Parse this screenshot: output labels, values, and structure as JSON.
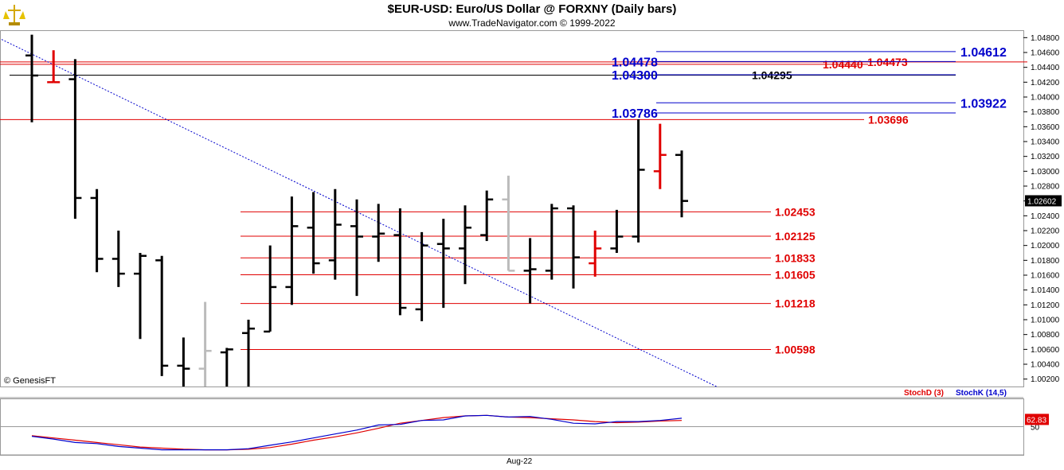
{
  "header": {
    "title": "$EUR-USD:  Euro/US Dollar @ FORXNY  (Daily bars)",
    "subtitle": "www.TradeNavigator.com © 1999-2022"
  },
  "footer": {
    "copyright": "© GenesisFT",
    "date_label": "Aug-22"
  },
  "chart_data": [
    {
      "type": "ohlc",
      "title": "$EUR-USD:  Euro/US Dollar @ FORXNY  (Daily bars)",
      "ylim": [
        1.001,
        1.049
      ],
      "y_ticks": [
        "1.04800",
        "1.04600",
        "1.04400",
        "1.04200",
        "1.04000",
        "1.03800",
        "1.03600",
        "1.03400",
        "1.03200",
        "1.03000",
        "1.02800",
        "1.02600",
        "1.02400",
        "1.02200",
        "1.02000",
        "1.01800",
        "1.01600",
        "1.01400",
        "1.01200",
        "1.01000",
        "1.00800",
        "1.00600",
        "1.00400",
        "1.00200"
      ],
      "last_price": "1.02602",
      "bars": [
        {
          "o": 1.0456,
          "h": 1.0484,
          "l": 1.0366,
          "c": 1.0429,
          "color": "#000000"
        },
        {
          "o": 1.042,
          "h": 1.0463,
          "l": 1.042,
          "c": 1.042,
          "color": "#e00000"
        },
        {
          "o": 1.0424,
          "h": 1.0451,
          "l": 1.0236,
          "c": 1.0264,
          "color": "#000000"
        },
        {
          "o": 1.0264,
          "h": 1.0276,
          "l": 1.0164,
          "c": 1.0182,
          "color": "#000000"
        },
        {
          "o": 1.0182,
          "h": 1.022,
          "l": 1.0144,
          "c": 1.0162,
          "color": "#000000"
        },
        {
          "o": 1.0162,
          "h": 1.019,
          "l": 1.0074,
          "c": 1.0186,
          "color": "#000000"
        },
        {
          "o": 1.018,
          "h": 1.0186,
          "l": 1.0024,
          "c": 1.0038,
          "color": "#000000"
        },
        {
          "o": 1.0038,
          "h": 1.0076,
          "l": 1.001,
          "c": 1.0034,
          "color": "#000000"
        },
        {
          "o": 1.0034,
          "h": 1.0124,
          "l": 1.001,
          "c": 1.0058,
          "color": "#bbbbbb"
        },
        {
          "o": 1.0056,
          "h": 1.0062,
          "l": 1.001,
          "c": 1.006,
          "color": "#000000"
        },
        {
          "o": 1.0082,
          "h": 1.01,
          "l": 1.001,
          "c": 1.0088,
          "color": "#000000"
        },
        {
          "o": 1.0084,
          "h": 1.02,
          "l": 1.0084,
          "c": 1.0144,
          "color": "#000000"
        },
        {
          "o": 1.0144,
          "h": 1.0266,
          "l": 1.012,
          "c": 1.0226,
          "color": "#000000"
        },
        {
          "o": 1.0224,
          "h": 1.0272,
          "l": 1.0162,
          "c": 1.0176,
          "color": "#000000"
        },
        {
          "o": 1.018,
          "h": 1.0276,
          "l": 1.0154,
          "c": 1.0228,
          "color": "#000000"
        },
        {
          "o": 1.0226,
          "h": 1.0262,
          "l": 1.0132,
          "c": 1.0212,
          "color": "#000000"
        },
        {
          "o": 1.0212,
          "h": 1.0256,
          "l": 1.0178,
          "c": 1.0216,
          "color": "#000000"
        },
        {
          "o": 1.0214,
          "h": 1.025,
          "l": 1.0106,
          "c": 1.0116,
          "color": "#000000"
        },
        {
          "o": 1.0114,
          "h": 1.0218,
          "l": 1.0098,
          "c": 1.02,
          "color": "#000000"
        },
        {
          "o": 1.0202,
          "h": 1.0236,
          "l": 1.0116,
          "c": 1.0196,
          "color": "#000000"
        },
        {
          "o": 1.0196,
          "h": 1.0254,
          "l": 1.0148,
          "c": 1.0224,
          "color": "#000000"
        },
        {
          "o": 1.0214,
          "h": 1.0274,
          "l": 1.0206,
          "c": 1.0262,
          "color": "#000000"
        },
        {
          "o": 1.0262,
          "h": 1.0294,
          "l": 1.0166,
          "c": 1.0166,
          "color": "#bbbbbb"
        },
        {
          "o": 1.0166,
          "h": 1.021,
          "l": 1.0122,
          "c": 1.0168,
          "color": "#000000"
        },
        {
          "o": 1.0166,
          "h": 1.0256,
          "l": 1.0154,
          "c": 1.025,
          "color": "#000000"
        },
        {
          "o": 1.025,
          "h": 1.0254,
          "l": 1.0142,
          "c": 1.0184,
          "color": "#000000"
        },
        {
          "o": 1.0176,
          "h": 1.022,
          "l": 1.0158,
          "c": 1.0196,
          "color": "#e00000"
        },
        {
          "o": 1.0196,
          "h": 1.0248,
          "l": 1.019,
          "c": 1.0212,
          "color": "#000000"
        },
        {
          "o": 1.0212,
          "h": 1.037,
          "l": 1.0204,
          "c": 1.0302,
          "color": "#000000"
        },
        {
          "o": 1.03,
          "h": 1.0364,
          "l": 1.0276,
          "c": 1.0322,
          "color": "#e00000"
        },
        {
          "o": 1.0322,
          "h": 1.0328,
          "l": 1.0238,
          "c": 1.026,
          "color": "#000000"
        }
      ],
      "horizontal_lines": [
        {
          "value": 1.04473,
          "color": "#e00000",
          "label": "1.04473"
        },
        {
          "value": 1.0444,
          "color": "#e00000",
          "label": "1.04440"
        },
        {
          "value": 1.04295,
          "color": "#000000",
          "label": "1.04295"
        },
        {
          "value": 1.03696,
          "color": "#e00000",
          "label": "1.03696"
        },
        {
          "value": 1.02453,
          "color": "#e00000",
          "label": "1.02453"
        },
        {
          "value": 1.02125,
          "color": "#e00000",
          "label": "1.02125"
        },
        {
          "value": 1.01833,
          "color": "#e00000",
          "label": "1.01833"
        },
        {
          "value": 1.01605,
          "color": "#e00000",
          "label": "1.01605"
        },
        {
          "value": 1.01218,
          "color": "#e00000",
          "label": "1.01218"
        },
        {
          "value": 1.00598,
          "color": "#e00000",
          "label": "1.00598"
        },
        {
          "value": 1.04612,
          "color": "#0000cc",
          "label": "1.04612"
        },
        {
          "value": 1.04478,
          "color": "#0000cc",
          "label": "1.04478"
        },
        {
          "value": 1.043,
          "color": "#0000cc",
          "label": "1.04300"
        },
        {
          "value": 1.03922,
          "color": "#0000cc",
          "label": "1.03922"
        },
        {
          "value": 1.03786,
          "color": "#0000cc",
          "label": "1.03786"
        }
      ],
      "trendline": {
        "from": [
          0,
          1.0484
        ],
        "to": [
          31.6,
          1.001
        ],
        "color": "#0000cc",
        "style": "dotted"
      }
    },
    {
      "type": "line",
      "title": "",
      "legend": [
        "StochD (3)",
        "StochK (14,5)"
      ],
      "ylim": [
        0,
        100
      ],
      "y_ticks": [
        "50"
      ],
      "last_value": "62.83",
      "series": [
        {
          "name": "StochD (3)",
          "color": "#e00000",
          "values": [
            34,
            30,
            26,
            22,
            18,
            14,
            12,
            10,
            9,
            9,
            10,
            13,
            19,
            26,
            32,
            39,
            47,
            56,
            61,
            66,
            69,
            70,
            67,
            66,
            64,
            62,
            59,
            57,
            58,
            60,
            61
          ]
        },
        {
          "name": "StochK (14,5)",
          "color": "#0000cc",
          "values": [
            33,
            28,
            22,
            20,
            15,
            12,
            9,
            9,
            9,
            9,
            11,
            17,
            23,
            30,
            37,
            44,
            53,
            54,
            61,
            62,
            69,
            70,
            67,
            68,
            63,
            56,
            55,
            59,
            59,
            61,
            65
          ]
        }
      ]
    }
  ]
}
